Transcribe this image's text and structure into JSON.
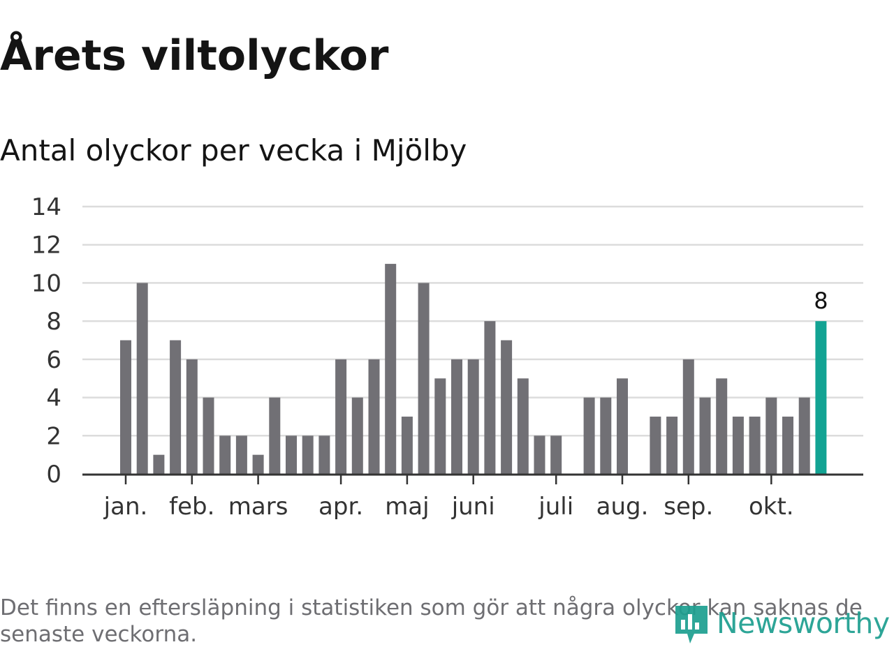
{
  "title": "Årets viltolyckor",
  "subtitle": "Antal olyckor per vecka i Mjölby",
  "caption": "Det finns en eftersläpning i statistiken som gör att några olyckor kan saknas de senaste veckorna.",
  "logo": {
    "text": "Newsworthy",
    "icon": "newsworthy-logo-icon"
  },
  "colors": {
    "bar": "#717075",
    "highlight": "#12a393",
    "grid": "#dcdcdc",
    "axis": "#333333",
    "text": "#333333"
  },
  "chart_data": {
    "type": "bar",
    "title": "Antal olyckor per vecka i Mjölby",
    "xlabel": "",
    "ylabel": "",
    "ylim": [
      0,
      14
    ],
    "yticks": [
      0,
      2,
      4,
      6,
      8,
      10,
      12,
      14
    ],
    "grid": true,
    "values": [
      7,
      10,
      1,
      7,
      6,
      4,
      2,
      2,
      1,
      4,
      2,
      2,
      2,
      6,
      4,
      6,
      11,
      3,
      10,
      5,
      6,
      6,
      8,
      7,
      5,
      2,
      2,
      0,
      4,
      4,
      5,
      0,
      3,
      3,
      6,
      4,
      5,
      3,
      3,
      4,
      3,
      4,
      8
    ],
    "months": [
      {
        "label": "jan.",
        "week_index": 0
      },
      {
        "label": "feb.",
        "week_index": 4
      },
      {
        "label": "mars",
        "week_index": 8
      },
      {
        "label": "apr.",
        "week_index": 13
      },
      {
        "label": "maj",
        "week_index": 17
      },
      {
        "label": "juni",
        "week_index": 21
      },
      {
        "label": "juli",
        "week_index": 26
      },
      {
        "label": "aug.",
        "week_index": 30
      },
      {
        "label": "sep.",
        "week_index": 34
      },
      {
        "label": "okt.",
        "week_index": 39
      }
    ],
    "highlight_index": 42,
    "highlight_label": "8"
  }
}
